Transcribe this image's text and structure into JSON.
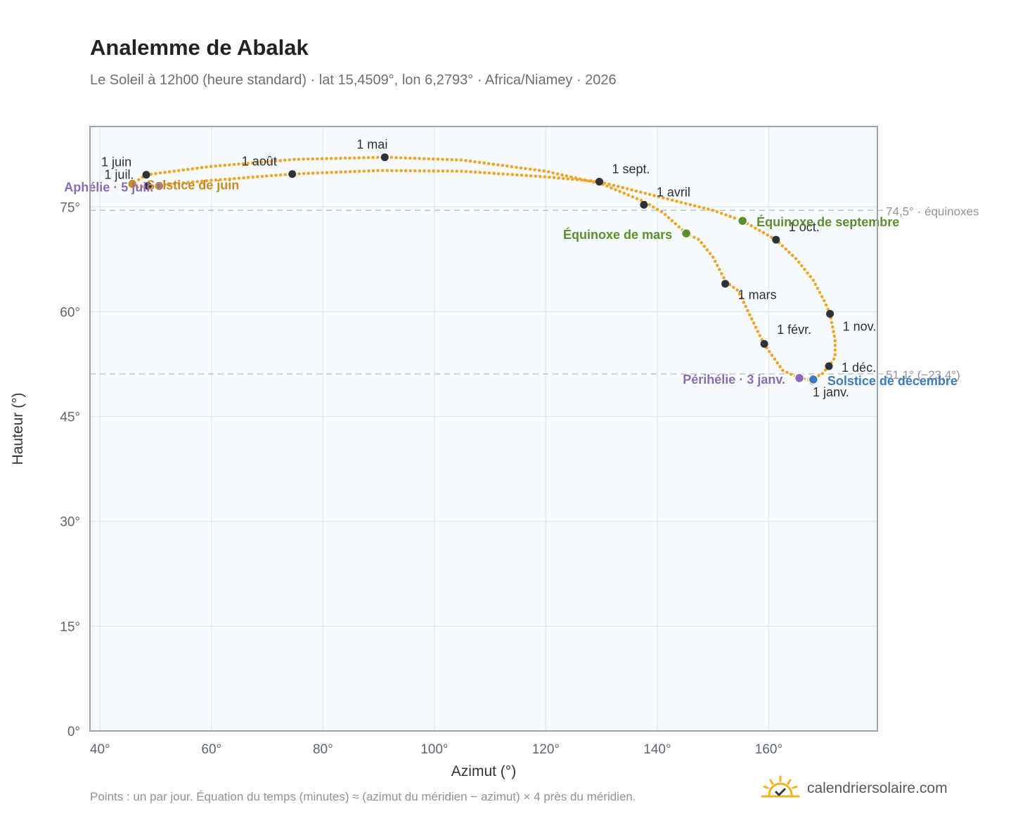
{
  "header": {
    "title": "Analemme de Abalak",
    "subtitle": "Le Soleil à 12h00 (heure standard) · lat 15,4509°, lon 6,2793° · Africa/Niamey · 2026"
  },
  "footer": {
    "note": "Points : un par jour. Équation du temps (minutes) ≈ (azimut du méridien − azimut) × 4 près du méridien.",
    "brand": "calendriersolaire.com",
    "brand_icon": "sun-check-icon"
  },
  "colors": {
    "curve": "#f0a526",
    "month_marker": "#2d333d",
    "equinox": "#5a8f2f",
    "june_solstice": "#c98a1f",
    "december_solstice": "#3d7bbf",
    "apsis": "#8c6bb5",
    "reference_line": "#b8c4cc",
    "plot_bg": "#f8fbfd",
    "grid": "#e4ebef"
  },
  "chart_data": {
    "type": "scatter",
    "xlabel": "Azimut (°)",
    "ylabel": "Hauteur (°)",
    "xlim": [
      38.2,
      179.5
    ],
    "ylim": [
      0,
      86.5
    ],
    "xticks": [
      40,
      60,
      80,
      100,
      120,
      140,
      160
    ],
    "xtick_labels": [
      "40°",
      "60°",
      "80°",
      "100°",
      "120°",
      "140°",
      "160°"
    ],
    "yticks": [
      0,
      15,
      30,
      45,
      60,
      75
    ],
    "ytick_labels": [
      "0°",
      "15°",
      "30°",
      "45°",
      "60°",
      "75°"
    ],
    "grid": true,
    "reference_lines": [
      {
        "y": 74.5,
        "label": "74,5° · équinoxes"
      },
      {
        "y": 51.1,
        "label": "51,1° (−23,4°)"
      }
    ],
    "curve_points": [
      [
        167.2,
        50.3
      ],
      [
        165.5,
        50.5
      ],
      [
        162.5,
        51.6
      ],
      [
        159.2,
        55.3
      ],
      [
        156.5,
        59.7
      ],
      [
        154.5,
        63.0
      ],
      [
        152.3,
        64.3
      ],
      [
        150.0,
        67.8
      ],
      [
        147.5,
        70.3
      ],
      [
        145.2,
        71.2
      ],
      [
        141.0,
        74.2
      ],
      [
        137.5,
        75.8
      ],
      [
        130.0,
        78.3
      ],
      [
        120.0,
        80.1
      ],
      [
        105.0,
        81.7
      ],
      [
        91.1,
        82.1
      ],
      [
        75.0,
        81.8
      ],
      [
        60.0,
        80.8
      ],
      [
        48.3,
        79.6
      ],
      [
        45.8,
        78.3
      ],
      [
        46.5,
        77.8
      ],
      [
        48.8,
        78.0
      ],
      [
        60.0,
        78.8
      ],
      [
        74.5,
        79.7
      ],
      [
        90.0,
        80.2
      ],
      [
        105.0,
        80.1
      ],
      [
        120.0,
        79.3
      ],
      [
        129.6,
        78.6
      ],
      [
        140.0,
        76.5
      ],
      [
        150.0,
        74.5
      ],
      [
        155.3,
        73.0
      ],
      [
        161.3,
        70.3
      ],
      [
        165.0,
        67.5
      ],
      [
        168.0,
        64.5
      ],
      [
        170.0,
        61.5
      ],
      [
        171.0,
        59.7
      ],
      [
        171.9,
        56.0
      ],
      [
        171.9,
        53.5
      ],
      [
        170.8,
        52.2
      ],
      [
        169.5,
        51.0
      ],
      [
        167.2,
        50.3
      ]
    ],
    "months": [
      {
        "label": "1 janv.",
        "x": 167.9,
        "y": 50.1
      },
      {
        "label": "1 févr.",
        "x": 159.2,
        "y": 55.4
      },
      {
        "label": "1 mars",
        "x": 152.2,
        "y": 64.0
      },
      {
        "label": "1 avril",
        "x": 137.6,
        "y": 75.3
      },
      {
        "label": "1 mai",
        "x": 91.1,
        "y": 82.1
      },
      {
        "label": "1 juin",
        "x": 48.3,
        "y": 79.6
      },
      {
        "label": "1 juil.",
        "x": 48.6,
        "y": 78.0
      },
      {
        "label": "1 août",
        "x": 74.5,
        "y": 79.7
      },
      {
        "label": "1 sept.",
        "x": 129.6,
        "y": 78.6
      },
      {
        "label": "1 oct.",
        "x": 161.3,
        "y": 70.3
      },
      {
        "label": "1 nov.",
        "x": 171.0,
        "y": 59.7
      },
      {
        "label": "1 déc.",
        "x": 170.8,
        "y": 52.2
      }
    ],
    "events": [
      {
        "label": "Équinoxe de mars",
        "x": 145.2,
        "y": 71.2,
        "kind": "equinox"
      },
      {
        "label": "Équinoxe de septembre",
        "x": 155.3,
        "y": 73.0,
        "kind": "equinox"
      },
      {
        "label": "Solstice de juin",
        "x": 45.8,
        "y": 78.3,
        "kind": "june_solstice"
      },
      {
        "label": "Solstice de décembre",
        "x": 168.0,
        "y": 50.3,
        "kind": "december_solstice"
      },
      {
        "label": "Aphélie · 5 juil.",
        "x": 50.6,
        "y": 78.0,
        "kind": "apsis"
      },
      {
        "label": "Périhélie · 3 janv.",
        "x": 165.5,
        "y": 50.5,
        "kind": "apsis"
      }
    ]
  }
}
